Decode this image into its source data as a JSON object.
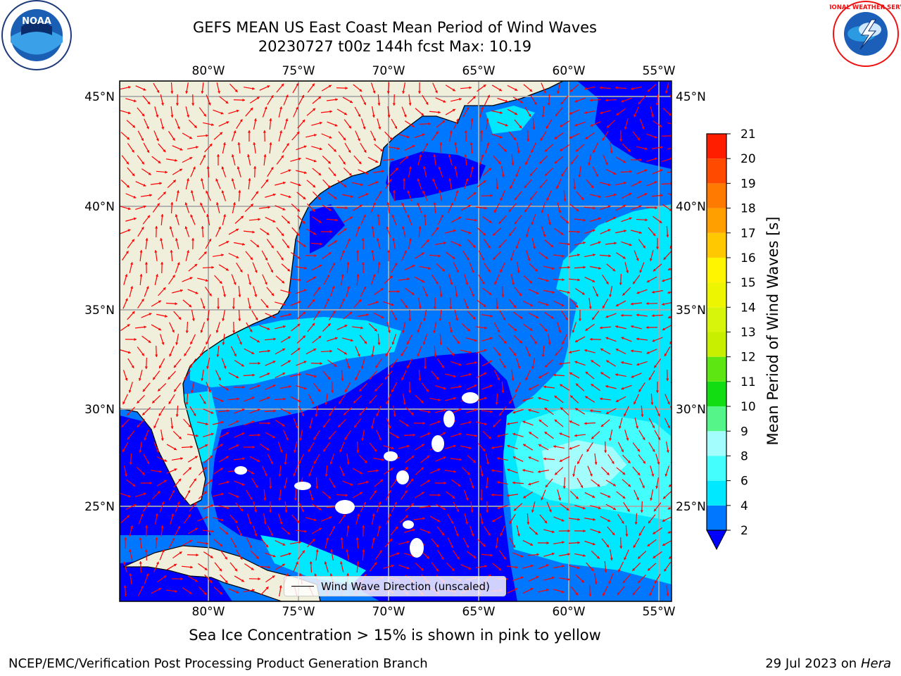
{
  "header": {
    "title_line1": "GEFS MEAN US East Coast Mean Period of Wind Waves",
    "title_line2": "20230727 t00z 144h fcst   Max: 10.19"
  },
  "logos": {
    "left": {
      "icon": "noaa-logo-icon",
      "text": "NOAA"
    },
    "right": {
      "icon": "nws-logo-icon",
      "text": "NATIONAL WEATHER SERVICE"
    }
  },
  "map": {
    "lon_labels": [
      "80°W",
      "75°W",
      "70°W",
      "65°W",
      "60°W",
      "55°W"
    ],
    "lat_labels": [
      "45°N",
      "40°N",
      "35°N",
      "30°N",
      "25°N"
    ],
    "legend_label": "Wind Wave Direction (unscaled)",
    "colors": {
      "land": "#efefdc",
      "grid": "#aaaaaa",
      "arrow": "#ff0000"
    }
  },
  "colorbar": {
    "label": "Mean Period of Wind Waves [s]",
    "tick_labels": [
      "2",
      "4",
      "6",
      "8",
      "9",
      "10",
      "11",
      "12",
      "13",
      "14",
      "15",
      "16",
      "17",
      "18",
      "19",
      "20",
      "21"
    ],
    "bins": [
      {
        "lo": 2,
        "hi": 4,
        "color": "#0077ff"
      },
      {
        "lo": 4,
        "hi": 6,
        "color": "#00e8ff"
      },
      {
        "lo": 6,
        "hi": 8,
        "color": "#44fdfd"
      },
      {
        "lo": 8,
        "hi": 9,
        "color": "#a4fdfd"
      },
      {
        "lo": 9,
        "hi": 10,
        "color": "#55f58a"
      },
      {
        "lo": 10,
        "hi": 11,
        "color": "#12dd12"
      },
      {
        "lo": 11,
        "hi": 12,
        "color": "#5ee612"
      },
      {
        "lo": 12,
        "hi": 13,
        "color": "#c8ee00"
      },
      {
        "lo": 13,
        "hi": 14,
        "color": "#d7f50a"
      },
      {
        "lo": 14,
        "hi": 15,
        "color": "#eef500"
      },
      {
        "lo": 15,
        "hi": 16,
        "color": "#fff500"
      },
      {
        "lo": 16,
        "hi": 17,
        "color": "#ffc800"
      },
      {
        "lo": 17,
        "hi": 18,
        "color": "#ffa000"
      },
      {
        "lo": 18,
        "hi": 19,
        "color": "#ff7a00"
      },
      {
        "lo": 19,
        "hi": 20,
        "color": "#ff4a00"
      },
      {
        "lo": 20,
        "hi": 21,
        "color": "#ff1e00"
      }
    ],
    "under_color": "#0000ff"
  },
  "footer": {
    "subtitle": "Sea Ice Concentration > 15% is shown in pink to yellow",
    "left": "NCEP/EMC/Verification Post Processing Product Generation Branch",
    "right_date": "29 Jul 2023 on ",
    "right_machine": "Hera"
  }
}
